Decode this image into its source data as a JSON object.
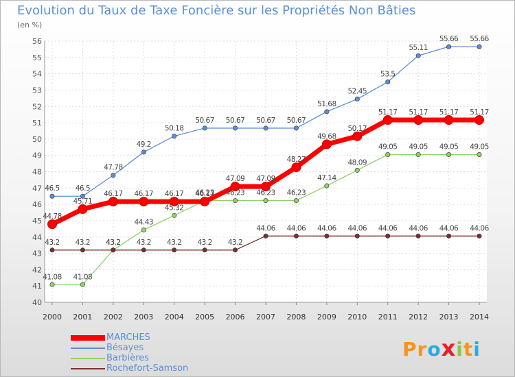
{
  "header": {
    "title": "Evolution du Taux de Taxe Foncière sur les Propriétés Non Bâties",
    "unit": "(en %)"
  },
  "brand": {
    "logo_text": "Proxiti",
    "letters": [
      "P",
      "r",
      "o",
      "x",
      "i",
      "t",
      "i"
    ],
    "letter_colors": [
      "#f7941d",
      "#f7941d",
      "#29abe2",
      "#ed1c24",
      "#8dc63f",
      "#f7941d",
      "#29abe2"
    ]
  },
  "chart_data": {
    "type": "line",
    "title": "Evolution du Taux de Taxe Foncière sur les Propriétés Non Bâties",
    "ylabel": "(en %)",
    "ylim": [
      40,
      56
    ],
    "grid": true,
    "legend_position": "bottom-left",
    "x": [
      "2000",
      "2001",
      "2002",
      "2003",
      "2004",
      "2005",
      "2006",
      "2007",
      "2008",
      "2009",
      "2010",
      "2011",
      "2012",
      "2013",
      "2014"
    ],
    "y_ticks": [
      "40",
      "41",
      "42",
      "43",
      "44",
      "45",
      "46",
      "47",
      "48",
      "49",
      "50",
      "51",
      "52",
      "53",
      "54",
      "55",
      "56"
    ],
    "series": [
      {
        "name": "MARCHES",
        "color": "#ff0000",
        "values": [
          44.78,
          45.71,
          46.17,
          46.17,
          46.17,
          46.17,
          47.09,
          47.09,
          48.27,
          49.68,
          50.17,
          51.17,
          51.17,
          51.17,
          51.17
        ],
        "labels": [
          "44.78",
          "45.71",
          "46.17",
          "46.17",
          "46.17",
          "46.17",
          "47.09",
          "47.09",
          "48.27",
          "49.68",
          "50.17",
          "51.17",
          "51.17",
          "51.17",
          "51.17"
        ]
      },
      {
        "name": "Bésayes",
        "color": "#5b8fd6",
        "values": [
          46.5,
          46.5,
          47.78,
          49.2,
          50.18,
          50.67,
          50.67,
          50.67,
          50.67,
          51.68,
          52.45,
          53.5,
          55.11,
          55.66,
          55.66
        ],
        "labels": [
          "46.5",
          "46.5",
          "47.78",
          "49.2",
          "50.18",
          "50.67",
          "50.67",
          "50.67",
          "50.67",
          "51.68",
          "52.45",
          "53.5",
          "55.11",
          "55.66",
          "55.66"
        ]
      },
      {
        "name": "Barbières",
        "color": "#8fd26a",
        "values": [
          41.08,
          41.08,
          43.2,
          44.43,
          45.32,
          46.23,
          46.23,
          46.23,
          46.23,
          47.14,
          48.09,
          49.05,
          49.05,
          49.05,
          49.05
        ],
        "labels": [
          "41.08",
          "41.08",
          "43.2",
          "44.43",
          "45.32",
          "46.23",
          "46.23",
          "46.23",
          "46.23",
          "47.14",
          "48.09",
          "49.05",
          "49.05",
          "49.05",
          "49.05"
        ]
      },
      {
        "name": "Rochefort-Samson",
        "color": "#7a3030",
        "values": [
          43.2,
          43.2,
          43.2,
          43.2,
          43.2,
          43.2,
          43.2,
          44.06,
          44.06,
          44.06,
          44.06,
          44.06,
          44.06,
          44.06,
          44.06
        ],
        "labels": [
          "43.2",
          "43.2",
          "43.2",
          "43.2",
          "43.2",
          "43.2",
          "43.2",
          "44.06",
          "44.06",
          "44.06",
          "44.06",
          "44.06",
          "44.06",
          "44.06",
          "44.06"
        ]
      }
    ]
  }
}
